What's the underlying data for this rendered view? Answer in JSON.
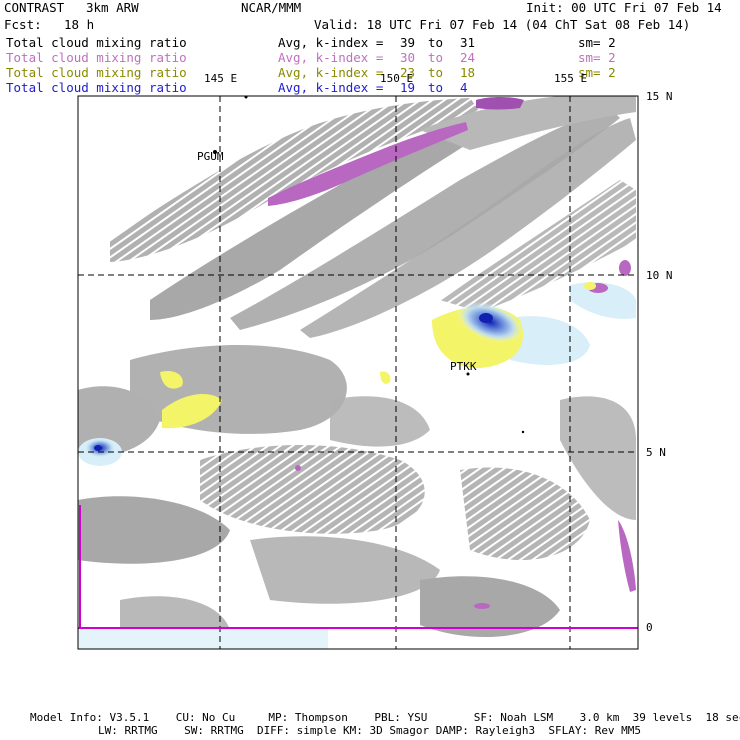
{
  "header": {
    "product": "CONTRAST",
    "model": "3km ARW",
    "center": "NCAR/MMM",
    "init": "Init: 00 UTC Fri 07 Feb 14",
    "fcst_label": "Fcst:",
    "fcst_value": "18 h",
    "valid": "Valid: 18 UTC Fri 07 Feb 14 (04 ChT Sat 08 Feb 14)"
  },
  "fields": [
    {
      "name": "Total cloud mixing ratio",
      "stat": "Avg, k-index =",
      "k_from": "39",
      "to": "to",
      "k_to": "31",
      "sm": "sm= 2",
      "color": "#000000"
    },
    {
      "name": "Total cloud mixing ratio",
      "stat": "Avg, k-index =",
      "k_from": "30",
      "to": "to",
      "k_to": "24",
      "sm": "sm= 2",
      "color": "#c070c0"
    },
    {
      "name": "Total cloud mixing ratio",
      "stat": "Avg, k-index =",
      "k_from": "23",
      "to": "to",
      "k_to": "18",
      "sm": "sm= 2",
      "color": "#8a8a00"
    },
    {
      "name": "Total cloud mixing ratio",
      "stat": "Avg, k-index =",
      "k_from": "19",
      "to": "to",
      "k_to": "4",
      "sm": "",
      "color": "#2020d0"
    }
  ],
  "map": {
    "lon_labels": [
      "145 E",
      "150 E",
      "155 E"
    ],
    "lat_labels": [
      "15 N",
      "10 N",
      "5 N",
      "0"
    ],
    "stations": [
      "PGUM",
      "PTKK"
    ],
    "colors": {
      "high_cloud": "#a8a8a8",
      "mid_cloud": "#b868c0",
      "low_cloud": "#f4f468",
      "deep_cloud": "#2030c0",
      "thin_cloud": "#d8eef8",
      "frame": "#000000",
      "boundary": "#d000d0"
    }
  },
  "footer": {
    "line1": "Model Info: V3.5.1    CU: No Cu     MP: Thompson    PBL: YSU       SF: Noah LSM    3.0 km  39 levels  18 sec",
    "line2": "LW: RRTMG    SW: RRTMG  DIFF: simple KM: 3D Smagor DAMP: Rayleigh3  SFLAY: Rev MM5"
  }
}
